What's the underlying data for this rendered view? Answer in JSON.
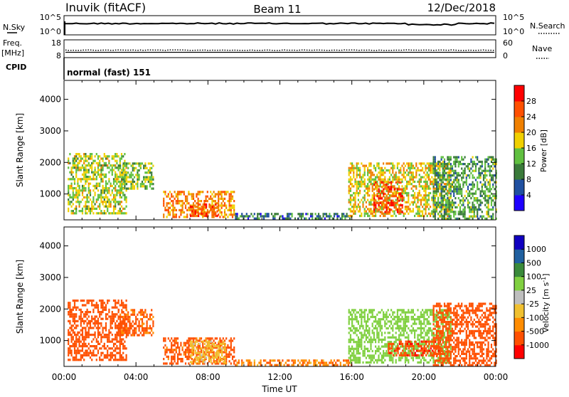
{
  "header": {
    "station": "Inuvik (fitACF)",
    "beam": "Beam 11",
    "date": "12/Dec/2018"
  },
  "sky_panel": {
    "left_label": "N.Sky",
    "right_label": "N.Search",
    "left_ticks": [
      "10^5",
      "10^0"
    ],
    "right_ticks": [
      "10^5",
      "10^0"
    ]
  },
  "freq_panel": {
    "left_label_top": "Freq.",
    "left_label_unit": "[MHz]",
    "right_label": "Nave",
    "left_ticks": [
      "18",
      "8"
    ],
    "right_ticks": [
      "60",
      "0"
    ]
  },
  "cpid": {
    "label": "CPID",
    "text": "normal (fast) 151"
  },
  "colors": {
    "power_scale": [
      "#1e00ff",
      "#2050a0",
      "#3a7a3a",
      "#60c040",
      "#f0d000",
      "#f08000",
      "#ff5000",
      "#ff0000"
    ],
    "velocity_scale": [
      "#ff0000",
      "#ff5000",
      "#ff8c00",
      "#f0c030",
      "#bebebe",
      "#80d040",
      "#3a8a3a",
      "#2060a0",
      "#1000c0"
    ]
  },
  "chart_data": [
    {
      "type": "heatmap",
      "title": "Power",
      "xlabel": "",
      "ylabel": "Slant Range [km]",
      "xlim": [
        "00:00",
        "24:00"
      ],
      "ylim": [
        180,
        4600
      ],
      "x_ticks": [
        "00:00",
        "04:00",
        "08:00",
        "12:00",
        "16:00",
        "20:00",
        "00:00"
      ],
      "y_ticks": [
        1000,
        2000,
        3000,
        4000
      ],
      "colorbar": {
        "label": "Power [dB]",
        "ticks": [
          "28",
          "24",
          "20",
          "16",
          "12",
          "8",
          "4"
        ],
        "range": [
          0,
          32
        ]
      },
      "regions": [
        {
          "t": [
            0.2,
            3.5
          ],
          "r": [
            400,
            2300
          ],
          "value": 16
        },
        {
          "t": [
            3.0,
            5.0
          ],
          "r": [
            1200,
            2000
          ],
          "value": 14
        },
        {
          "t": [
            5.5,
            9.5
          ],
          "r": [
            300,
            1100
          ],
          "value": 22
        },
        {
          "t": [
            7.0,
            8.5
          ],
          "r": [
            300,
            700
          ],
          "value": 26
        },
        {
          "t": [
            9.5,
            16.0
          ],
          "r": [
            200,
            400
          ],
          "value": 8
        },
        {
          "t": [
            15.8,
            21.5
          ],
          "r": [
            300,
            2000
          ],
          "value": 18
        },
        {
          "t": [
            17.2,
            18.8
          ],
          "r": [
            400,
            1400
          ],
          "value": 26
        },
        {
          "t": [
            20.5,
            24.0
          ],
          "r": [
            200,
            2200
          ],
          "value": 12
        }
      ]
    },
    {
      "type": "heatmap",
      "title": "Velocity",
      "xlabel": "Time UT",
      "ylabel": "Slant Range [km]",
      "xlim": [
        "00:00",
        "24:00"
      ],
      "ylim": [
        180,
        4600
      ],
      "x_ticks": [
        "00:00",
        "04:00",
        "08:00",
        "12:00",
        "16:00",
        "20:00",
        "00:00"
      ],
      "y_ticks": [
        1000,
        2000,
        3000,
        4000
      ],
      "colorbar": {
        "label": "Velocity [m s^-1]",
        "ticks": [
          "1000",
          "500",
          "100",
          "25",
          "-25",
          "-100",
          "-500",
          "-1000"
        ]
      },
      "regions": [
        {
          "t": [
            0.2,
            3.5
          ],
          "r": [
            400,
            2300
          ],
          "value": -300
        },
        {
          "t": [
            3.0,
            5.0
          ],
          "r": [
            1200,
            2000
          ],
          "value": -150
        },
        {
          "t": [
            5.5,
            9.5
          ],
          "r": [
            300,
            1100
          ],
          "value": -200
        },
        {
          "t": [
            7.0,
            9.0
          ],
          "r": [
            300,
            1000
          ],
          "value": 0
        },
        {
          "t": [
            9.5,
            16.0
          ],
          "r": [
            200,
            400
          ],
          "value": -80
        },
        {
          "t": [
            15.8,
            21.5
          ],
          "r": [
            300,
            2000
          ],
          "value": 300
        },
        {
          "t": [
            18.0,
            21.0
          ],
          "r": [
            500,
            1000
          ],
          "value": -400
        },
        {
          "t": [
            20.5,
            24.0
          ],
          "r": [
            200,
            2200
          ],
          "value": -250
        }
      ]
    }
  ]
}
